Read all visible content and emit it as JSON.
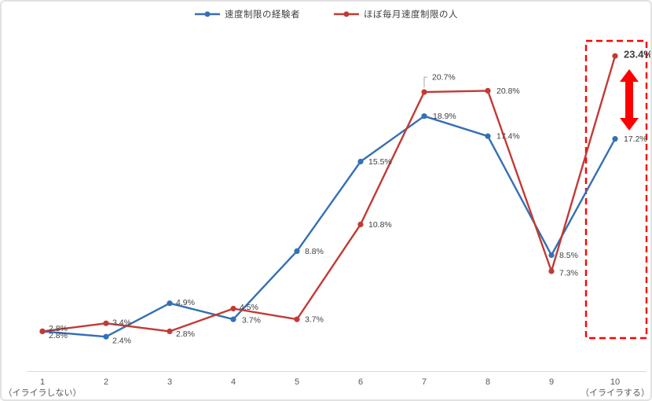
{
  "chart_data": {
    "type": "line",
    "categories": [
      "1",
      "2",
      "3",
      "4",
      "5",
      "6",
      "7",
      "8",
      "9",
      "10"
    ],
    "x_axis": {
      "min_sublabel": "（イライラしない）",
      "max_sublabel": "（イライラする）"
    },
    "series": [
      {
        "name": "速度制限の経験者",
        "color": "#3470B5",
        "values": [
          2.8,
          2.4,
          4.9,
          3.7,
          8.8,
          15.5,
          18.9,
          17.4,
          8.5,
          17.2
        ]
      },
      {
        "name": "ほぼ毎月速度制限の人",
        "color": "#C23A35",
        "values": [
          2.8,
          3.4,
          2.8,
          4.5,
          3.7,
          10.8,
          20.7,
          20.8,
          7.3,
          23.4
        ]
      }
    ],
    "ylim": [
      0,
      25
    ],
    "value_suffix": "%",
    "grid": false,
    "legend_position": "top-center",
    "annotations": {
      "highlight_category": "10",
      "highlight_color": "#FF0000",
      "highlight_style": "red dashed rectangle around category 10 column",
      "emphasized_label": "23.4%",
      "gap_arrow": "thick red vertical double-headed arrow between 23.4% and 17.2%"
    },
    "callouts": [
      {
        "series": "ほぼ毎月速度制限の人",
        "category": "7",
        "label": "20.7%",
        "leader_color": "#A6A6A6"
      }
    ],
    "axis_line_color": "#D9D9D9",
    "label_color": "#404040"
  }
}
